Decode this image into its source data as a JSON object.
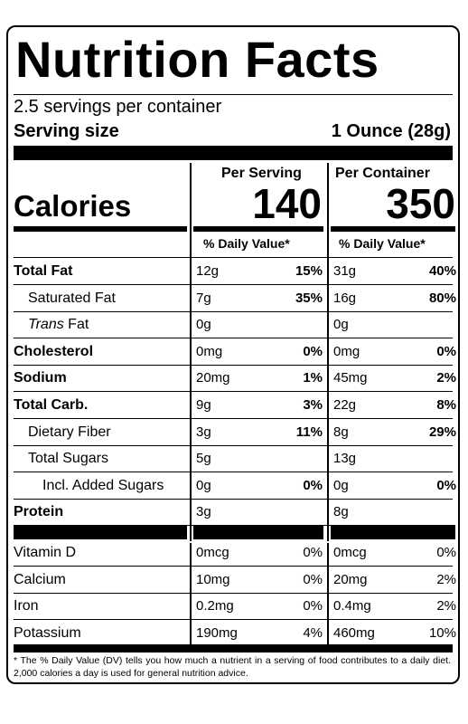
{
  "title": "Nutrition Facts",
  "servings_per_container": "2.5 servings per container",
  "serving_size_label": "Serving size",
  "serving_size_value": "1 Ounce (28g)",
  "column_headers": {
    "per_serving": "Per Serving",
    "per_container": "Per Container"
  },
  "calories": {
    "label": "Calories",
    "per_serving": "140",
    "per_container": "350"
  },
  "dv_header": "% Daily Value*",
  "nutrients": [
    {
      "name": "Total Fat",
      "bold": true,
      "indent": 0,
      "serving_amount": "12g",
      "serving_dv": "15%",
      "container_amount": "31g",
      "container_dv": "40%"
    },
    {
      "name": "Saturated Fat",
      "bold": false,
      "indent": 1,
      "serving_amount": "7g",
      "serving_dv": "35%",
      "container_amount": "16g",
      "container_dv": "80%"
    },
    {
      "name_italic": "Trans",
      "name": " Fat",
      "bold": false,
      "indent": 1,
      "serving_amount": "0g",
      "serving_dv": "",
      "container_amount": "0g",
      "container_dv": ""
    },
    {
      "name": "Cholesterol",
      "bold": true,
      "indent": 0,
      "serving_amount": "0mg",
      "serving_dv": "0%",
      "container_amount": "0mg",
      "container_dv": "0%"
    },
    {
      "name": "Sodium",
      "bold": true,
      "indent": 0,
      "serving_amount": "20mg",
      "serving_dv": "1%",
      "container_amount": "45mg",
      "container_dv": "2%"
    },
    {
      "name": "Total Carb.",
      "bold": true,
      "indent": 0,
      "serving_amount": "9g",
      "serving_dv": "3%",
      "container_amount": "22g",
      "container_dv": "8%"
    },
    {
      "name": "Dietary Fiber",
      "bold": false,
      "indent": 1,
      "serving_amount": "3g",
      "serving_dv": "11%",
      "container_amount": "8g",
      "container_dv": "29%"
    },
    {
      "name": "Total Sugars",
      "bold": false,
      "indent": 1,
      "serving_amount": "5g",
      "serving_dv": "",
      "container_amount": "13g",
      "container_dv": ""
    },
    {
      "name": "Incl. Added Sugars",
      "bold": false,
      "indent": 2,
      "serving_amount": "0g",
      "serving_dv": "0%",
      "container_amount": "0g",
      "container_dv": "0%"
    },
    {
      "name": "Protein",
      "bold": true,
      "indent": 0,
      "serving_amount": "3g",
      "serving_dv": "",
      "container_amount": "8g",
      "container_dv": ""
    }
  ],
  "vitamins": [
    {
      "name": "Vitamin D",
      "serving_amount": "0mcg",
      "serving_dv": "0%",
      "container_amount": "0mcg",
      "container_dv": "0%"
    },
    {
      "name": "Calcium",
      "serving_amount": "10mg",
      "serving_dv": "0%",
      "container_amount": "20mg",
      "container_dv": "2%"
    },
    {
      "name": "Iron",
      "serving_amount": "0.2mg",
      "serving_dv": "0%",
      "container_amount": "0.4mg",
      "container_dv": "2%"
    },
    {
      "name": "Potassium",
      "serving_amount": "190mg",
      "serving_dv": "4%",
      "container_amount": "460mg",
      "container_dv": "10%"
    }
  ],
  "footnote": "* The % Daily Value (DV) tells you how much a nutrient in a serving of food contributes to a daily diet. 2,000 calories a day is used for general nutrition advice."
}
